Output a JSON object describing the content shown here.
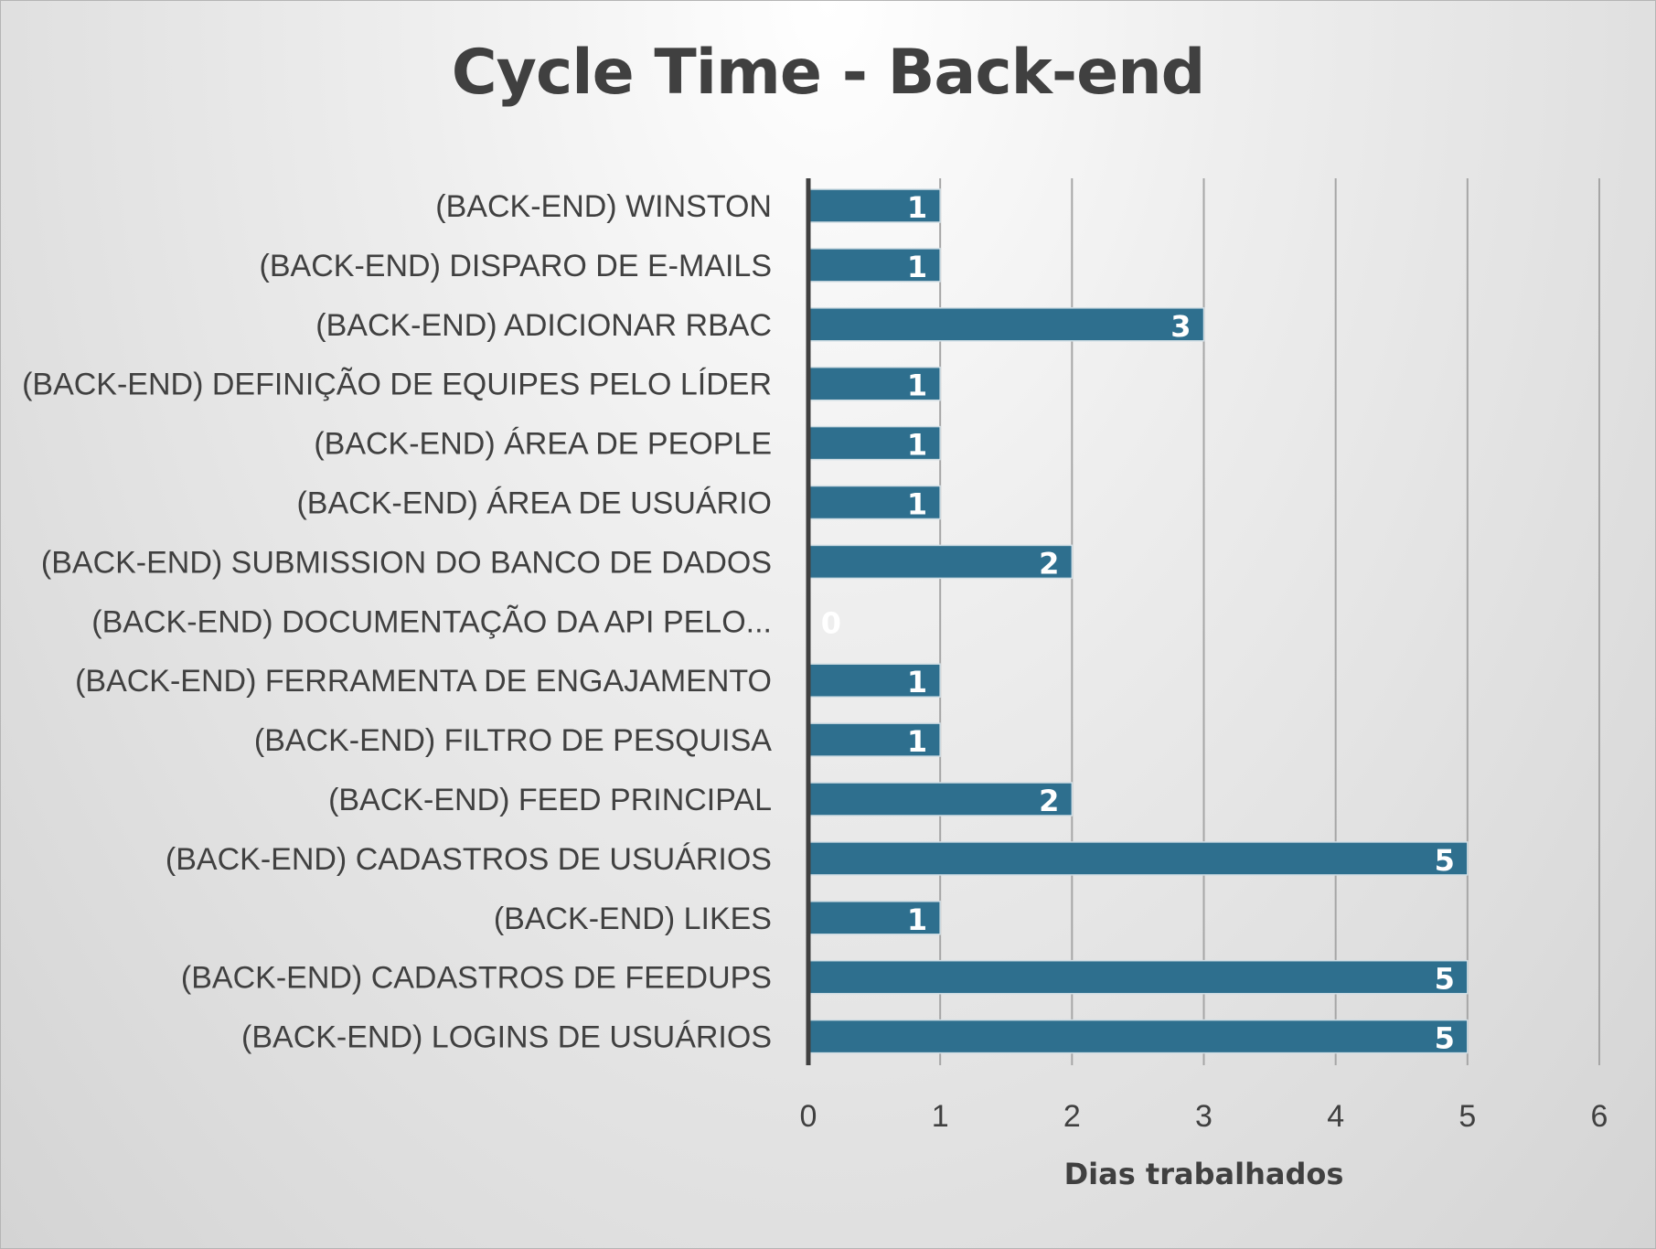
{
  "chart_data": {
    "type": "bar",
    "orientation": "horizontal",
    "title": "Cycle Time - Back-end",
    "xlabel": "Dias trabalhados",
    "ylabel": "",
    "xlim": [
      0,
      6
    ],
    "x_ticks": [
      "0",
      "1",
      "2",
      "3",
      "4",
      "5",
      "6"
    ],
    "grid": true,
    "legend": "none",
    "bar_color": "#2e6f8e",
    "categories": [
      "(BACK-END) WINSTON",
      "(BACK-END) DISPARO DE E-MAILS",
      "(BACK-END) ADICIONAR RBAC",
      "(BACK-END) DEFINIÇÃO DE EQUIPES PELO LÍDER",
      "(BACK-END) ÁREA DE PEOPLE",
      "(BACK-END) ÁREA DE USUÁRIO",
      "(BACK-END) SUBMISSION DO BANCO DE DADOS",
      "(BACK-END) DOCUMENTAÇÃO DA API PELO...",
      "(BACK-END) FERRAMENTA DE ENGAJAMENTO",
      "(BACK-END) FILTRO DE PESQUISA",
      "(BACK-END) FEED PRINCIPAL",
      "(BACK-END) CADASTROS DE USUÁRIOS",
      "(BACK-END) LIKES",
      "(BACK-END) CADASTROS DE FEEDUPS",
      "(BACK-END) LOGINS DE USUÁRIOS"
    ],
    "values": [
      1,
      1,
      3,
      1,
      1,
      1,
      2,
      0,
      1,
      1,
      2,
      5,
      1,
      5,
      5
    ]
  }
}
